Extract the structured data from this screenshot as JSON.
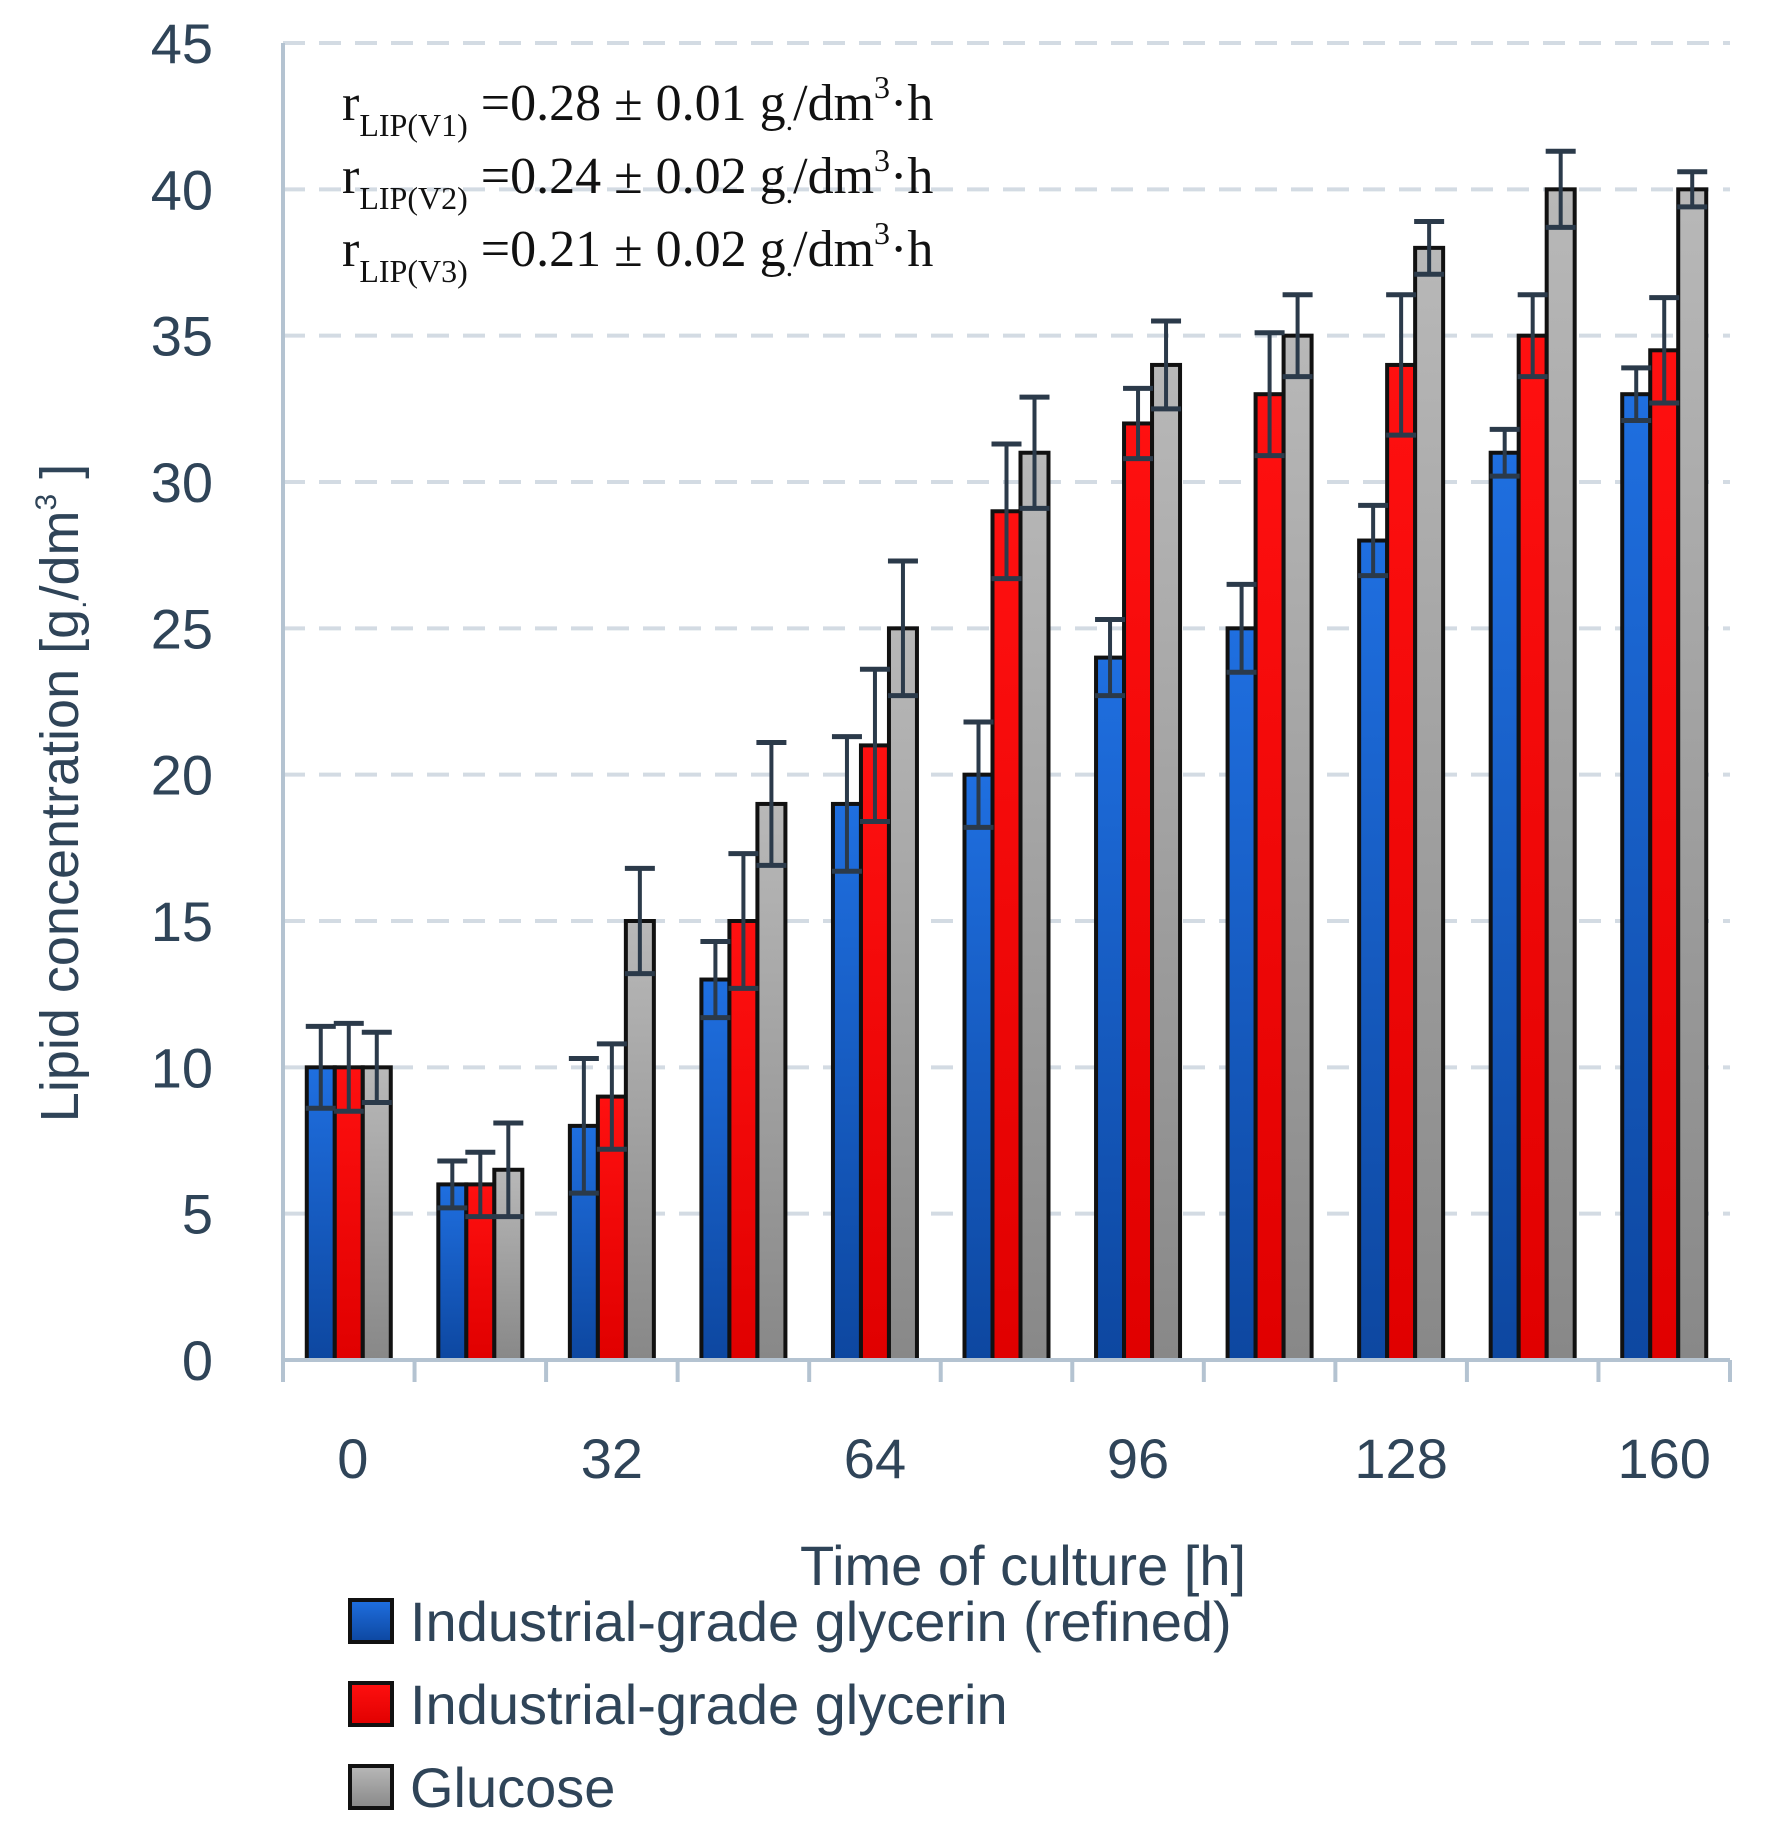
{
  "chart_data": {
    "type": "bar",
    "xlabel": "Time of culture [h]",
    "ylabel": "Lipid concentration [g/dm3]",
    "ylabel_main": "Lipid concentration [g",
    "ylabel_sub": ".",
    "ylabel_unit": "/dm",
    "ylabel_sup": "3",
    "ylabel_close": " ]",
    "ylim": [
      0,
      45
    ],
    "yticks": [
      0,
      5,
      10,
      15,
      20,
      25,
      30,
      35,
      40,
      45
    ],
    "ytick_labels": [
      "0",
      "5",
      "10",
      "15",
      "20",
      "25",
      "30",
      "35",
      "40",
      "45"
    ],
    "categories": [
      "0",
      "16",
      "32",
      "48",
      "64",
      "80",
      "96",
      "112",
      "128",
      "144",
      "160"
    ],
    "category_labels_shown": [
      "0",
      "",
      "32",
      "",
      "64",
      "",
      "96",
      "",
      "128",
      "",
      "160"
    ],
    "grid": true,
    "series": [
      {
        "name": "Industrial-grade glycerin (refined)",
        "color": "#1a5fc8",
        "values": [
          10,
          6,
          8,
          13,
          19,
          20,
          24,
          25,
          28,
          31,
          33
        ],
        "errors": [
          1.4,
          0.8,
          2.3,
          1.3,
          2.3,
          1.8,
          1.3,
          1.5,
          1.2,
          0.8,
          0.9
        ]
      },
      {
        "name": "Industrial-grade glycerin",
        "color": "#ff0000",
        "values": [
          10,
          6,
          9,
          15,
          21,
          29,
          32,
          33,
          34,
          35,
          34.5
        ],
        "errors": [
          1.5,
          1.1,
          1.8,
          2.3,
          2.6,
          2.3,
          1.2,
          2.1,
          2.4,
          1.4,
          1.8
        ]
      },
      {
        "name": "Glucose",
        "color": "#9a9a9a",
        "values": [
          10,
          6.5,
          15,
          19,
          25,
          31,
          34,
          35,
          38,
          40,
          40
        ],
        "errors": [
          1.2,
          1.6,
          1.8,
          2.1,
          2.3,
          1.9,
          1.5,
          1.4,
          0.9,
          1.3,
          0.6
        ]
      }
    ],
    "annotations": [
      {
        "r": "r",
        "sub": "LIP(V1)",
        "eq": " =0.28 ± 0.01 g",
        "dot": ".",
        "unit": "/dm",
        "sup": "3",
        "tail": "·h"
      },
      {
        "r": "r",
        "sub": "LIP(V2)",
        "eq": " =0.24 ± 0.02 g",
        "dot": ".",
        "unit": "/dm",
        "sup": "3",
        "tail": "·h"
      },
      {
        "r": "r",
        "sub": "LIP(V3)",
        "eq": " =0.21 ± 0.02 g",
        "dot": ".",
        "unit": "/dm",
        "sup": "3",
        "tail": "·h"
      }
    ],
    "legend_position": "bottom-left"
  },
  "colors": {
    "axis_text": "#2f4458",
    "axis_line": "#b4c3d1",
    "grid": "#d3dbe3",
    "error_bar": "#2b3a4a",
    "bar_outline": "#111111"
  }
}
